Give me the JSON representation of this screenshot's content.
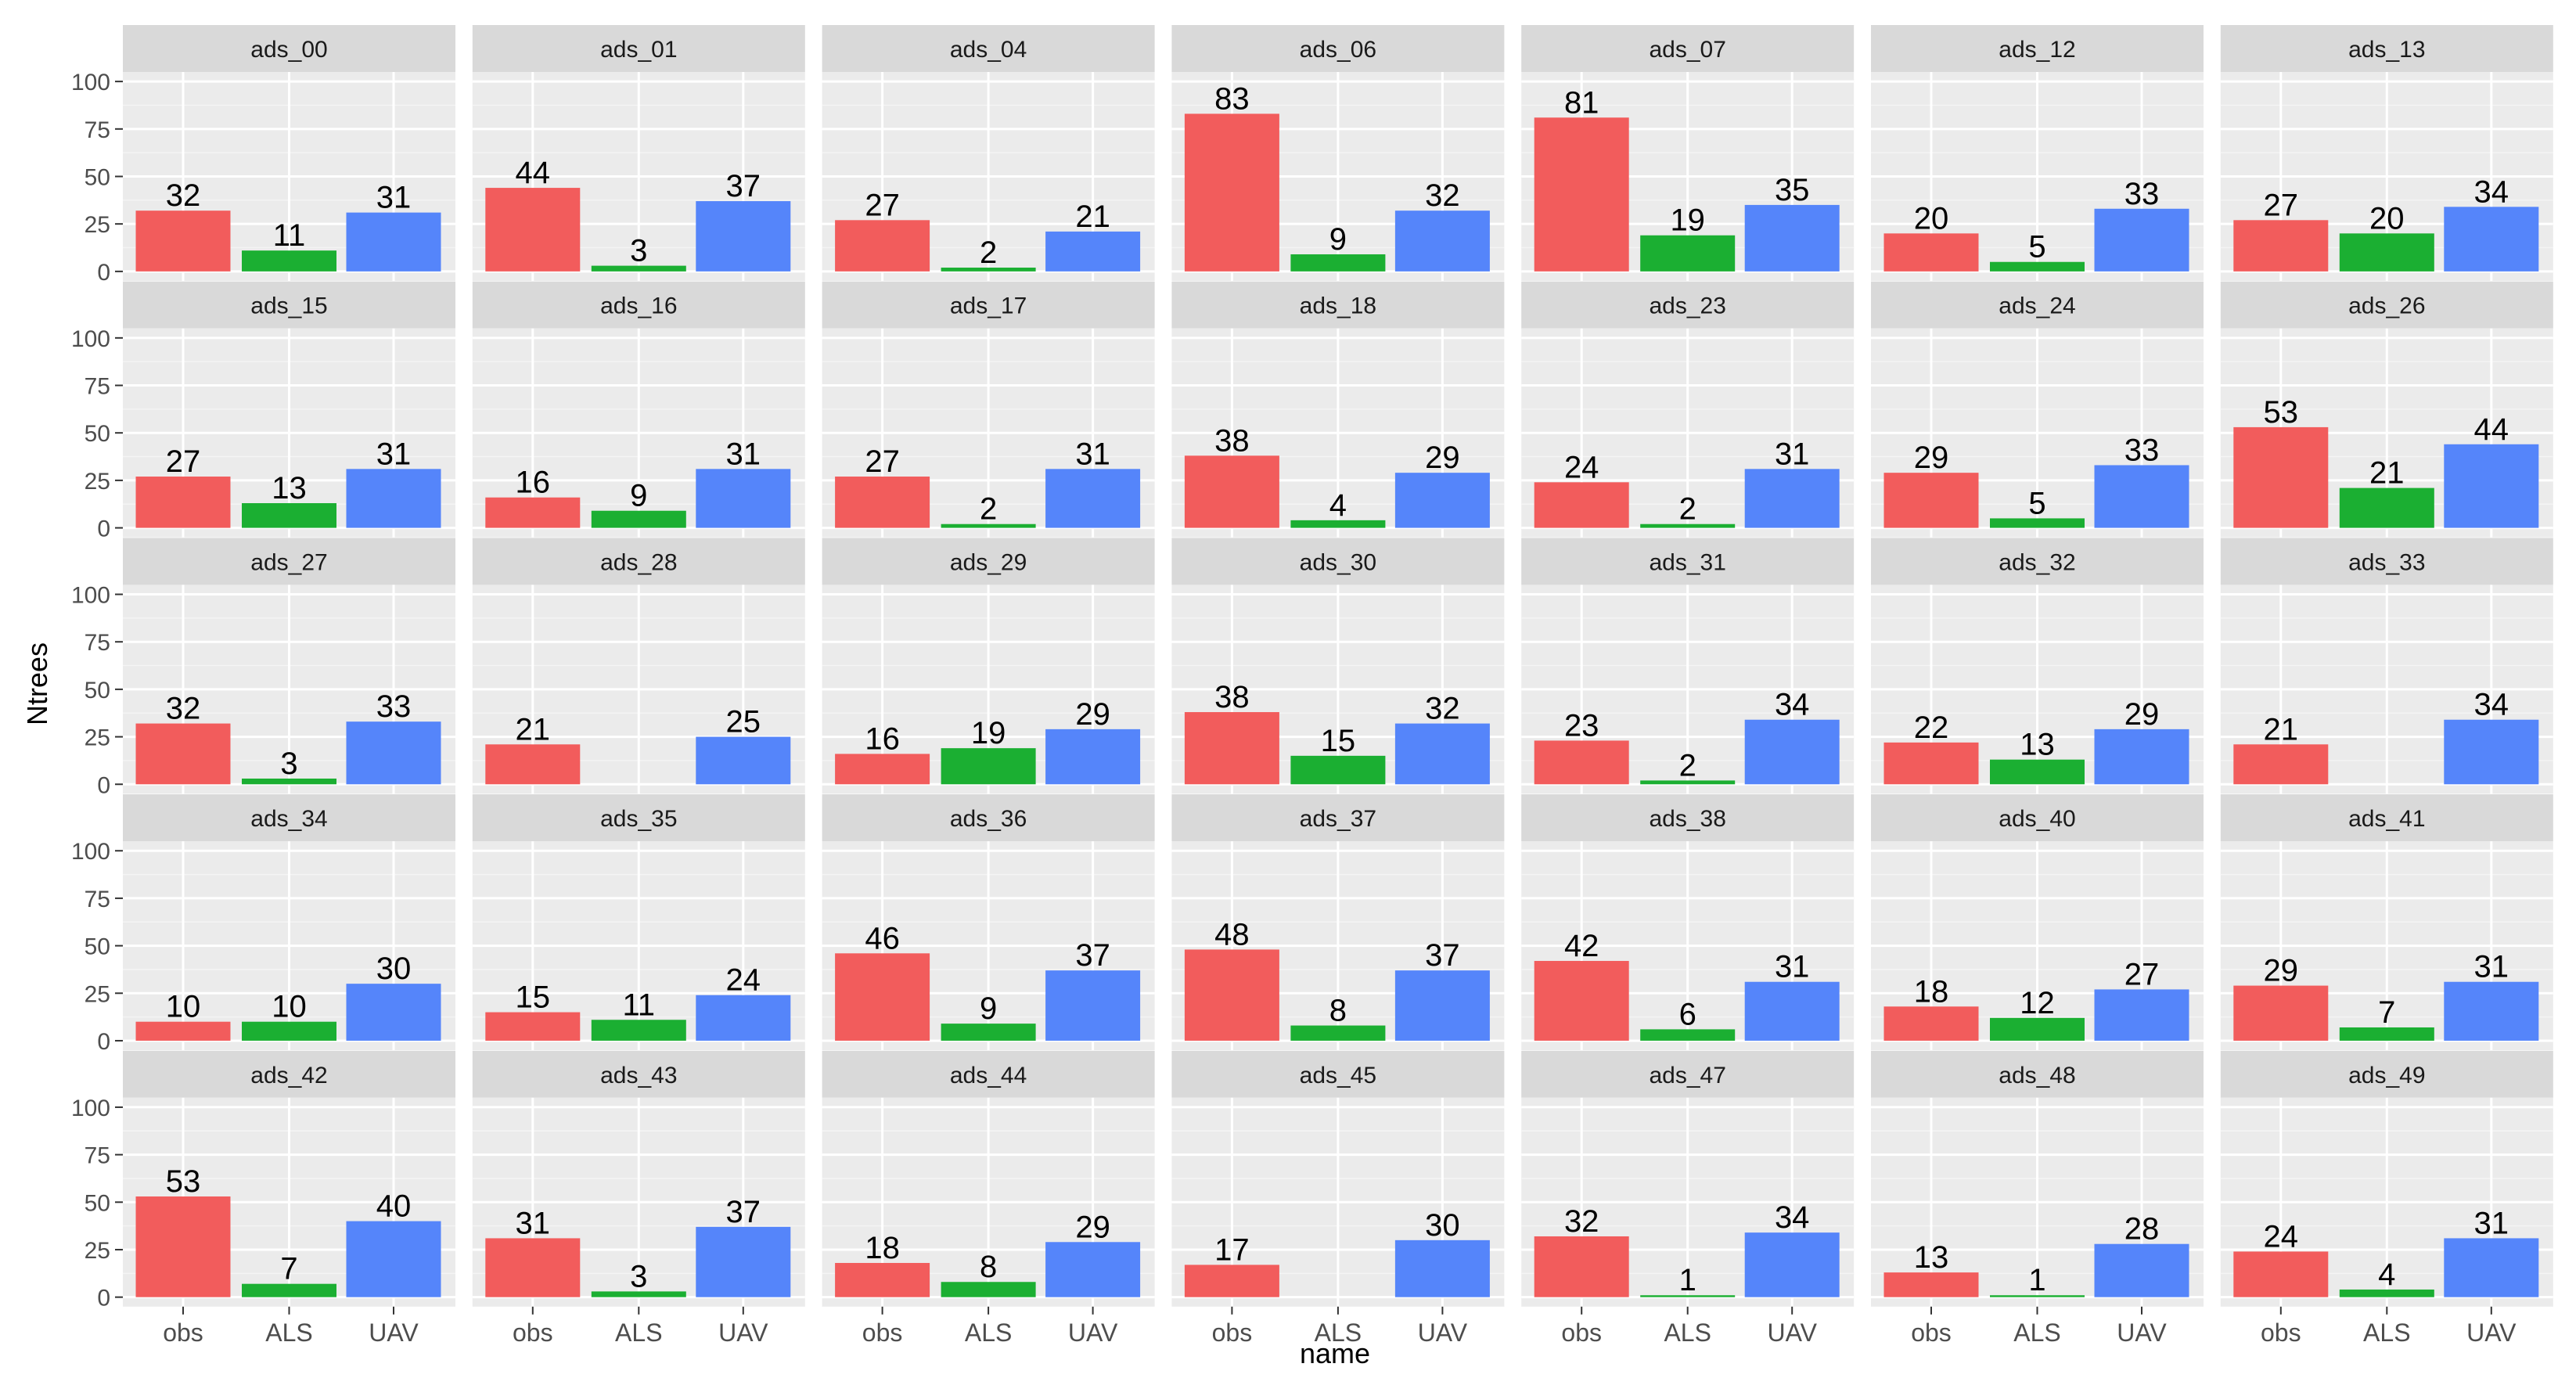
{
  "chart_data": {
    "type": "bar",
    "layout": "facet-grid",
    "xlabel": "name",
    "ylabel": "Ntrees",
    "categories": [
      "obs",
      "ALS",
      "UAV"
    ],
    "yticks": [
      "0",
      "25",
      "50",
      "75",
      "100"
    ],
    "ylim": [
      -5,
      105
    ],
    "colors": {
      "obs": "#F25C5C",
      "ALS": "#1BAF32",
      "UAV": "#5585FA"
    },
    "panels": [
      {
        "id": "ads_00",
        "values": [
          32,
          11,
          31
        ]
      },
      {
        "id": "ads_01",
        "values": [
          44,
          3,
          37
        ]
      },
      {
        "id": "ads_04",
        "values": [
          27,
          2,
          21
        ]
      },
      {
        "id": "ads_06",
        "values": [
          83,
          9,
          32
        ]
      },
      {
        "id": "ads_07",
        "values": [
          81,
          19,
          35
        ]
      },
      {
        "id": "ads_12",
        "values": [
          20,
          5,
          33
        ]
      },
      {
        "id": "ads_13",
        "values": [
          27,
          20,
          34
        ]
      },
      {
        "id": "ads_15",
        "values": [
          27,
          13,
          31
        ]
      },
      {
        "id": "ads_16",
        "values": [
          16,
          9,
          31
        ]
      },
      {
        "id": "ads_17",
        "values": [
          27,
          2,
          31
        ]
      },
      {
        "id": "ads_18",
        "values": [
          38,
          4,
          29
        ]
      },
      {
        "id": "ads_23",
        "values": [
          24,
          2,
          31
        ]
      },
      {
        "id": "ads_24",
        "values": [
          29,
          5,
          33
        ]
      },
      {
        "id": "ads_26",
        "values": [
          53,
          21,
          44
        ]
      },
      {
        "id": "ads_27",
        "values": [
          32,
          3,
          33
        ]
      },
      {
        "id": "ads_28",
        "values": [
          21,
          null,
          25
        ]
      },
      {
        "id": "ads_29",
        "values": [
          16,
          19,
          29
        ]
      },
      {
        "id": "ads_30",
        "values": [
          38,
          15,
          32
        ]
      },
      {
        "id": "ads_31",
        "values": [
          23,
          2,
          34
        ]
      },
      {
        "id": "ads_32",
        "values": [
          22,
          13,
          29
        ]
      },
      {
        "id": "ads_33",
        "values": [
          21,
          null,
          34
        ]
      },
      {
        "id": "ads_34",
        "values": [
          10,
          10,
          30
        ]
      },
      {
        "id": "ads_35",
        "values": [
          15,
          11,
          24
        ]
      },
      {
        "id": "ads_36",
        "values": [
          46,
          9,
          37
        ]
      },
      {
        "id": "ads_37",
        "values": [
          48,
          8,
          37
        ]
      },
      {
        "id": "ads_38",
        "values": [
          42,
          6,
          31
        ]
      },
      {
        "id": "ads_40",
        "values": [
          18,
          12,
          27
        ]
      },
      {
        "id": "ads_41",
        "values": [
          29,
          7,
          31
        ]
      },
      {
        "id": "ads_42",
        "values": [
          53,
          7,
          40
        ]
      },
      {
        "id": "ads_43",
        "values": [
          31,
          3,
          37
        ]
      },
      {
        "id": "ads_44",
        "values": [
          18,
          8,
          29
        ]
      },
      {
        "id": "ads_45",
        "values": [
          17,
          null,
          30
        ]
      },
      {
        "id": "ads_47",
        "values": [
          32,
          1,
          34
        ]
      },
      {
        "id": "ads_48",
        "values": [
          13,
          1,
          28
        ]
      },
      {
        "id": "ads_49",
        "values": [
          24,
          4,
          31
        ]
      }
    ]
  }
}
